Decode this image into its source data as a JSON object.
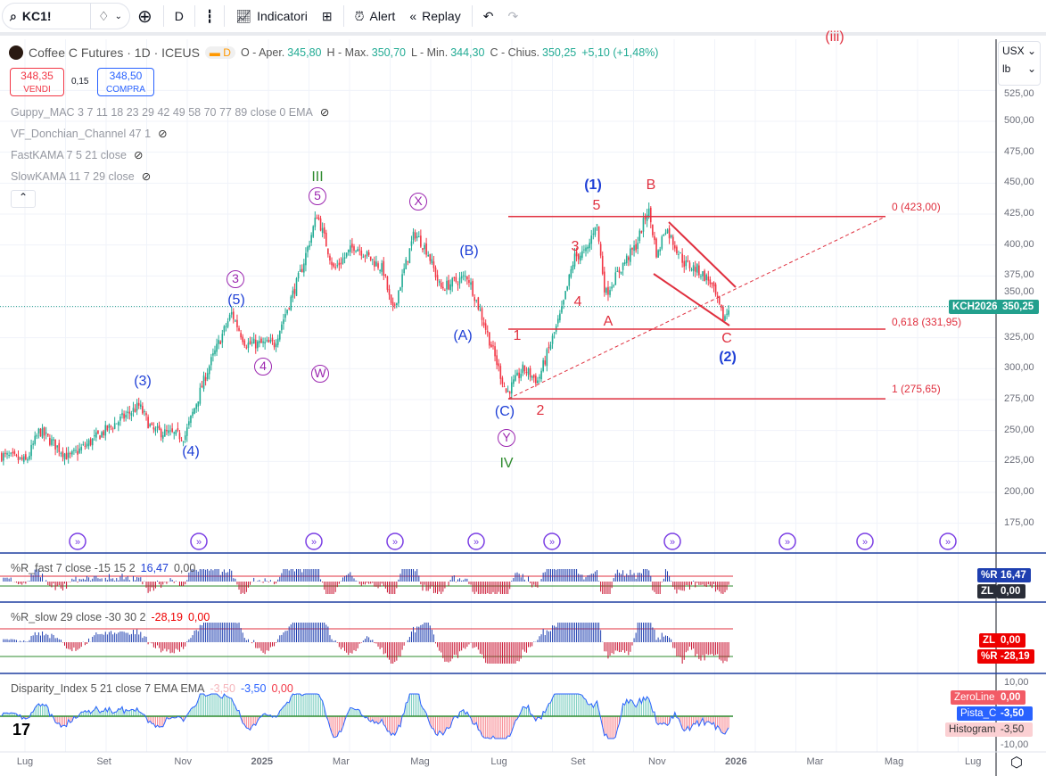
{
  "toolbar": {
    "symbol": "KC1!",
    "interval": "D",
    "indicators": "Indicatori",
    "alert": "Alert",
    "replay": "Replay"
  },
  "legend": {
    "title": "Coffee C Futures · 1D · ICEUS",
    "badge": "D",
    "o_label": "O - Aper.",
    "o": "345,80",
    "h_label": "H - Max.",
    "h": "350,70",
    "l_label": "L - Min.",
    "l": "344,30",
    "c_label": "C - Chius.",
    "c": "350,25",
    "chg": "+5,10 (+1,48%)"
  },
  "trade": {
    "sell_price": "348,35",
    "sell_label": "VENDI",
    "spread": "0,15",
    "buy_price": "348,50",
    "buy_label": "COMPRA"
  },
  "indicators": [
    {
      "name": "Guppy_MAC 3 7 11 18 23 29 42 49 58 70 77 89 close 0 EMA"
    },
    {
      "name": "VF_Donchian_Channel 47 1"
    },
    {
      "name": "FastKAMA 7 5 21 close"
    },
    {
      "name": "SlowKAMA 11 7 29 close"
    }
  ],
  "currency": "USX",
  "unit": "lb",
  "price_axis": [
    "525,00",
    "500,00",
    "475,00",
    "450,00",
    "425,00",
    "400,00",
    "375,00",
    "350,00",
    "325,00",
    "300,00",
    "275,00",
    "250,00",
    "225,00",
    "200,00",
    "175,00"
  ],
  "last_price": {
    "symbol": "KCH2026",
    "value": "350,25"
  },
  "fib": [
    {
      "label": "0 (423,00)",
      "price": 423.0
    },
    {
      "label": "0,618 (331,95)",
      "price": 331.95
    },
    {
      "label": "1 (275,65)",
      "price": 275.65
    }
  ],
  "waves": [
    "III",
    "5",
    "X",
    "3",
    "(5)",
    "4",
    "W",
    "(3)",
    "(4)",
    "(B)",
    "(A)",
    "(C)",
    "Y",
    "IV",
    "(1)",
    "5",
    "B",
    "3",
    "4",
    "A",
    "1",
    "2",
    "C",
    "(2)",
    "(iii)"
  ],
  "time_axis": [
    "Lug",
    "Set",
    "Nov",
    "2025",
    "Mar",
    "Mag",
    "Lug",
    "Set",
    "Nov",
    "2026",
    "Mar",
    "Mag",
    "Lug"
  ],
  "panels": {
    "rfast": {
      "title": "%R_fast 7 close -15 15 2",
      "v1": "16,47",
      "v2": "0,00",
      "tag1": "%R",
      "tag1v": "16,47",
      "tag2": "ZL",
      "tag2v": "0,00"
    },
    "rslow": {
      "title": "%R_slow 29 close -30 30 2",
      "v1": "-28,19",
      "v2": "0,00",
      "tag1": "ZL",
      "tag1v": "0,00",
      "tag2": "%R",
      "tag2v": "-28,19"
    },
    "disp": {
      "title": "Disparity_Index 5 21 close 7 EMA EMA",
      "v0": "-3,50",
      "v1": "-3,50",
      "v2": "0,00",
      "axis_top": "10,00",
      "axis_bot": "-10,00",
      "tags": [
        {
          "n": "ZeroLine",
          "v": "0,00"
        },
        {
          "n": "Pista_C",
          "v": "-3,50"
        },
        {
          "n": "Histogram",
          "v": "-3,50"
        }
      ]
    }
  },
  "colors": {
    "up": "#22ab94",
    "down": "#f23645",
    "wave_blue": "#1e3fd6",
    "wave_red": "#e0303f",
    "wave_purple": "#9c27b0",
    "wave_green": "#2e8b2e",
    "teal": "#22a08d"
  },
  "chart_data": {
    "type": "candlestick",
    "ylim": [
      160,
      535
    ],
    "close_waypoints": [
      [
        "2024-06-13",
        230
      ],
      [
        "2024-07-02",
        225
      ],
      [
        "2024-07-12",
        250
      ],
      [
        "2024-08-04",
        228
      ],
      [
        "2024-09-01",
        250
      ],
      [
        "2024-09-27",
        270
      ],
      [
        "2024-10-07",
        250
      ],
      [
        "2024-11-01",
        245
      ],
      [
        "2024-11-19",
        300
      ],
      [
        "2024-12-07",
        345
      ],
      [
        "2024-12-18",
        320
      ],
      [
        "2025-01-09",
        320
      ],
      [
        "2025-01-30",
        380
      ],
      [
        "2025-02-11",
        425
      ],
      [
        "2025-02-24",
        380
      ],
      [
        "2025-03-12",
        400
      ],
      [
        "2025-04-03",
        380
      ],
      [
        "2025-04-10",
        345
      ],
      [
        "2025-04-27",
        410
      ],
      [
        "2025-05-07",
        395
      ],
      [
        "2025-05-17",
        365
      ],
      [
        "2025-06-07",
        375
      ],
      [
        "2025-06-17",
        345
      ],
      [
        "2025-07-07",
        280
      ],
      [
        "2025-07-20",
        300
      ],
      [
        "2025-07-31",
        290
      ],
      [
        "2025-08-18",
        345
      ],
      [
        "2025-08-28",
        390
      ],
      [
        "2025-09-07",
        395
      ],
      [
        "2025-09-14",
        420
      ],
      [
        "2025-09-21",
        360
      ],
      [
        "2025-10-05",
        385
      ],
      [
        "2025-10-15",
        400
      ],
      [
        "2025-10-24",
        430
      ],
      [
        "2025-10-31",
        390
      ],
      [
        "2025-11-06",
        415
      ],
      [
        "2025-11-21",
        385
      ],
      [
        "2025-12-01",
        380
      ],
      [
        "2025-12-11",
        370
      ],
      [
        "2025-12-21",
        340
      ],
      [
        "2025-12-26",
        350.25
      ]
    ]
  }
}
